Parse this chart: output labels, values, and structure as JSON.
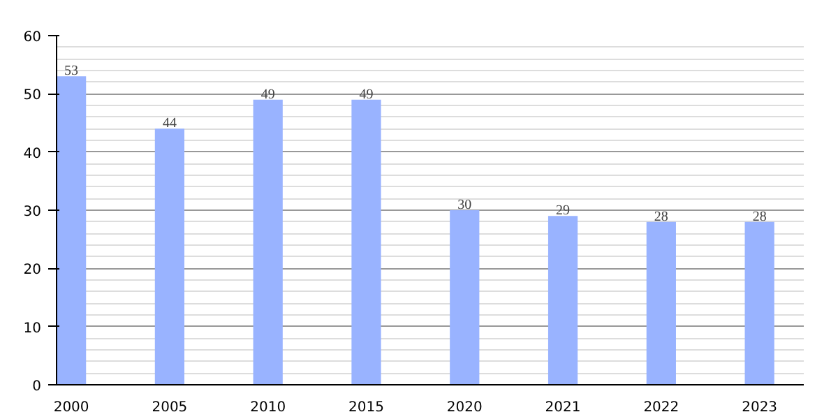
{
  "chart_data": {
    "type": "bar",
    "categories": [
      "2000",
      "2005",
      "2010",
      "2015",
      "2020",
      "2021",
      "2022",
      "2023"
    ],
    "values": [
      53,
      44,
      49,
      49,
      30,
      29,
      28,
      28
    ],
    "color": "#99b3ff",
    "ylim": [
      0,
      60
    ],
    "yticks": [
      0,
      10,
      20,
      30,
      40,
      50,
      60
    ],
    "grid": "y",
    "data_labels": true
  }
}
